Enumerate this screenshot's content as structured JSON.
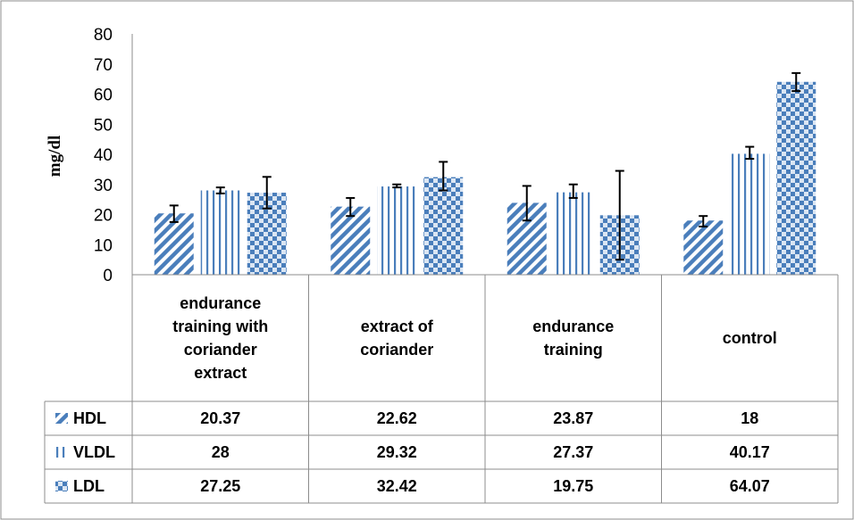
{
  "chart_data": {
    "type": "bar",
    "ylabel": "mg/dl",
    "ylim": [
      0,
      80
    ],
    "ytick_step": 10,
    "categories": [
      [
        "endurance",
        "training with",
        "coriander",
        "extract"
      ],
      [
        "extract of",
        "coriander"
      ],
      [
        "endurance",
        "training"
      ],
      [
        "control"
      ]
    ],
    "series": [
      {
        "name": "HDL",
        "values": [
          20.37,
          22.62,
          23.87,
          18
        ],
        "labels": [
          "20.37",
          "22.62",
          "23.87",
          "18"
        ],
        "err_low": [
          17.5,
          19.5,
          18.0,
          16.0
        ],
        "err_high": [
          23.0,
          25.5,
          29.5,
          19.5
        ],
        "color": "#4a7ebb",
        "pattern": "diagonal-stripes"
      },
      {
        "name": "VLDL",
        "values": [
          28,
          29.32,
          27.37,
          40.17
        ],
        "labels": [
          "28",
          "29.32",
          "27.37",
          "40.17"
        ],
        "err_low": [
          27.0,
          29.0,
          25.5,
          38.5
        ],
        "err_high": [
          29.0,
          30.0,
          30.0,
          42.5
        ],
        "color": "#4a7ebb",
        "pattern": "vertical-lines"
      },
      {
        "name": "LDL",
        "values": [
          27.25,
          32.42,
          19.75,
          64.07
        ],
        "labels": [
          "27.25",
          "32.42",
          "19.75",
          "64.07"
        ],
        "err_low": [
          22.0,
          28.0,
          5.0,
          61.0
        ],
        "err_high": [
          32.5,
          37.5,
          34.5,
          67.0
        ],
        "color": "#4a7ebb",
        "pattern": "checker"
      }
    ],
    "grid": false,
    "legend": "data-table"
  }
}
